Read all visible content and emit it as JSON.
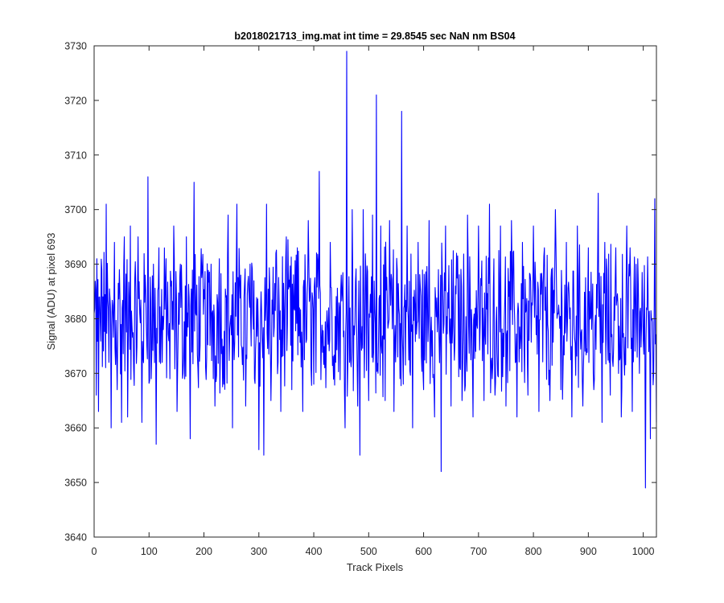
{
  "chart_data": {
    "type": "line",
    "title": "b2018021713_img.mat int time = 29.8545 sec  NaN nm BS04",
    "xlabel": "Track Pixels",
    "ylabel": "Signal (ADU) at pixel 693",
    "xlim": [
      0,
      1024
    ],
    "ylim": [
      3640,
      3730
    ],
    "xticks": [
      0,
      100,
      200,
      300,
      400,
      500,
      600,
      700,
      800,
      900,
      1000
    ],
    "yticks": [
      3640,
      3650,
      3660,
      3670,
      3680,
      3690,
      3700,
      3710,
      3720,
      3730
    ],
    "grid": false,
    "box": true,
    "series": [
      {
        "color": "#0000ff",
        "x": [
          0,
          4,
          5,
          8,
          14,
          22,
          27,
          31,
          37,
          42,
          46,
          50,
          55,
          61,
          66,
          72,
          80,
          87,
          93,
          98,
          104,
          108,
          113,
          118,
          124,
          131,
          138,
          145,
          151,
          157,
          162,
          168,
          175,
          182,
          189,
          197,
          205,
          213,
          220,
          228,
          236,
          244,
          252,
          260,
          263,
          267,
          276,
          284,
          292,
          300,
          306,
          309,
          314,
          322,
          331,
          340,
          350,
          360,
          370,
          380,
          390,
          400,
          410,
          420,
          430,
          440,
          450,
          457,
          460,
          465,
          470,
          480,
          484,
          490,
          500,
          507,
          512,
          514,
          517,
          522,
          530,
          538,
          546,
          552,
          557,
          560,
          563,
          570,
          580,
          590,
          600,
          610,
          620,
          627,
          632,
          635,
          640,
          650,
          660,
          670,
          680,
          690,
          700,
          710,
          720,
          730,
          740,
          750,
          760,
          770,
          780,
          790,
          800,
          810,
          820,
          830,
          840,
          850,
          860,
          870,
          880,
          890,
          900,
          910,
          918,
          925,
          930,
          940,
          950,
          960,
          970,
          980,
          990,
          1000,
          1004,
          1006,
          1009,
          1013,
          1016,
          1019,
          1021,
          1024
        ],
        "y": [
          3681,
          3666,
          3691,
          3663,
          3689,
          3701,
          3672,
          3660,
          3694,
          3667,
          3689,
          3661,
          3695,
          3662,
          3697,
          3671,
          3695,
          3661,
          3688,
          3706,
          3669,
          3690,
          3657,
          3693,
          3672,
          3691,
          3669,
          3697,
          3663,
          3690,
          3670,
          3695,
          3658,
          3705,
          3671,
          3689,
          3673,
          3690,
          3664,
          3691,
          3668,
          3699,
          3660,
          3701,
          3673,
          3688,
          3664,
          3690,
          3669,
          3656,
          3676,
          3655,
          3701,
          3665,
          3692,
          3663,
          3695,
          3667,
          3693,
          3663,
          3698,
          3668,
          3707,
          3671,
          3694,
          3672,
          3688,
          3660,
          3729,
          3672,
          3700,
          3664,
          3655,
          3700,
          3665,
          3699,
          3679,
          3721,
          3670,
          3697,
          3665,
          3698,
          3663,
          3689,
          3669,
          3718,
          3668,
          3697,
          3660,
          3694,
          3667,
          3698,
          3662,
          3689,
          3652,
          3684,
          3697,
          3664,
          3692,
          3665,
          3699,
          3662,
          3697,
          3665,
          3701,
          3666,
          3697,
          3664,
          3698,
          3662,
          3694,
          3666,
          3697,
          3663,
          3693,
          3665,
          3700,
          3667,
          3694,
          3662,
          3697,
          3664,
          3693,
          3667,
          3703,
          3661,
          3694,
          3666,
          3693,
          3662,
          3697,
          3663,
          3691,
          3676,
          3649,
          3682,
          3683,
          3658,
          3680,
          3670,
          3702,
          3661
        ]
      }
    ]
  }
}
